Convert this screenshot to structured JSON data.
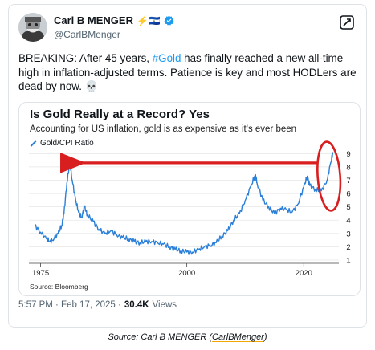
{
  "author": {
    "display_name": "Carl Ƀ MENGER",
    "emoji": "⚡🇸🇻",
    "handle": "@CarlBMenger",
    "verified": true
  },
  "tweet": {
    "text_part1": "BREAKING: After 45 years, ",
    "hashtag": "#Gold",
    "text_part2": " has finally reached a new all-time high in inflation-adjusted terms. Patience is key and most HODLers are dead by now. 💀",
    "timestamp": "5:57 PM · Feb 17, 2025 ·",
    "views_count": "30.4K",
    "views_label": "Views"
  },
  "chart_data": {
    "type": "line",
    "title": "Is Gold Really at a Record? Yes",
    "subtitle": "Accounting for US inflation, gold is as expensive as it's ever been",
    "legend": "Gold/CPI Ratio",
    "source": "Source: Bloomberg",
    "x_ticks": [
      "1975",
      "2000",
      "2020"
    ],
    "y_ticks": [
      "1",
      "2",
      "3",
      "4",
      "5",
      "6",
      "7",
      "8",
      "9"
    ],
    "xlim": [
      1973,
      2026
    ],
    "ylim": [
      1,
      9.5
    ],
    "series": [
      {
        "x": [
          1974,
          1975,
          1976,
          1976.6,
          1977,
          1978,
          1978.6,
          1979,
          1979.5,
          1980,
          1980.4,
          1981,
          1981.5,
          1982,
          1982.5,
          1983,
          1984,
          1985,
          1986,
          1987,
          1988,
          1989,
          1990,
          1991,
          1992,
          1993,
          1994,
          1995,
          1996,
          1997,
          1998,
          1999,
          2000,
          2001,
          2002,
          2003,
          2004,
          2005,
          2006,
          2007,
          2008,
          2009,
          2010,
          2011,
          2011.7,
          2012,
          2013,
          2014,
          2015,
          2016,
          2017,
          2018,
          2019,
          2020,
          2020.6,
          2021,
          2022,
          2023,
          2024,
          2024.6,
          2025
        ],
        "y": [
          3.6,
          3.1,
          2.6,
          2.4,
          2.5,
          3.0,
          3.6,
          4.5,
          6.8,
          8.4,
          7.0,
          5.5,
          4.6,
          4.2,
          5.0,
          4.4,
          3.9,
          3.3,
          3.0,
          3.2,
          2.9,
          2.7,
          2.6,
          2.4,
          2.3,
          2.4,
          2.4,
          2.3,
          2.2,
          2.0,
          1.8,
          1.7,
          1.6,
          1.6,
          1.8,
          2.0,
          2.1,
          2.3,
          2.8,
          3.2,
          4.0,
          4.5,
          5.5,
          6.6,
          7.4,
          6.8,
          5.5,
          5.0,
          4.5,
          4.9,
          4.8,
          4.6,
          5.2,
          6.5,
          7.3,
          6.6,
          6.3,
          6.2,
          7.0,
          8.3,
          9.1
        ]
      }
    ],
    "annotation": "red arrow pointing left toward 1980 peak; red ellipse around 2024-2025 high"
  },
  "caption": {
    "prefix": "Source: Carl Ƀ MENGER (",
    "link": "CarlBMenger",
    "suffix": ")"
  },
  "colors": {
    "line": "#2a7fd8",
    "annotation": "#d81e1e",
    "verified": "#1d9bf0",
    "hashtag": "#1d9bf0"
  }
}
